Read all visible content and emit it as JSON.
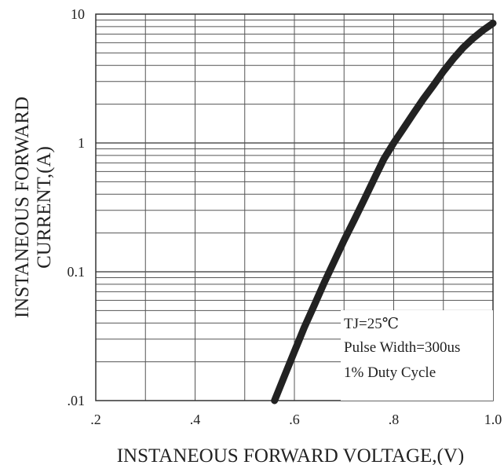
{
  "chart_data": {
    "type": "line",
    "x_axis": {
      "label": "INSTANEOUS FORWARD VOLTAGE,(V)",
      "range": [
        0.2,
        1.0
      ],
      "ticks": [
        0.2,
        0.4,
        0.6,
        0.8,
        1.0
      ],
      "tick_labels": [
        ".2",
        ".4",
        ".6",
        ".8",
        "1.0"
      ],
      "minor_step": 0.1
    },
    "y_axis": {
      "label_lines": [
        "INSTANEOUS FORWARD",
        "CURRENT,(A)"
      ],
      "scale": "log",
      "range": [
        0.01,
        10
      ],
      "ticks": [
        0.01,
        0.1,
        1,
        10
      ],
      "tick_labels": [
        ".01",
        "0.1",
        "1",
        "10"
      ]
    },
    "grid": true,
    "series": [
      {
        "color": "#222222",
        "x": [
          0.56,
          0.58,
          0.6,
          0.62,
          0.64,
          0.66,
          0.68,
          0.7,
          0.72,
          0.74,
          0.76,
          0.78,
          0.8,
          0.82,
          0.84,
          0.86,
          0.88,
          0.9,
          0.92,
          0.94,
          0.96,
          0.98,
          1.0
        ],
        "y": [
          0.01,
          0.0155,
          0.024,
          0.037,
          0.055,
          0.082,
          0.12,
          0.175,
          0.25,
          0.36,
          0.52,
          0.75,
          1.0,
          1.3,
          1.7,
          2.2,
          2.8,
          3.6,
          4.5,
          5.5,
          6.5,
          7.5,
          8.5
        ]
      }
    ],
    "annotations": [
      "TJ=25℃",
      "Pulse Width=300us",
      "1% Duty Cycle"
    ]
  }
}
